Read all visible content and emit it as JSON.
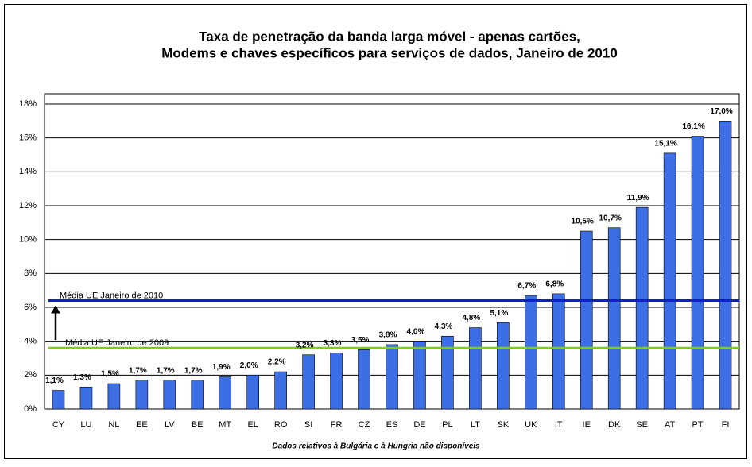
{
  "chart_data": {
    "type": "bar",
    "title": [
      "Taxa de penetração da banda larga móvel - apenas cartões,",
      "Modems e chaves específicos para serviços de dados,  Janeiro de 2010"
    ],
    "categories": [
      "CY",
      "LU",
      "NL",
      "EE",
      "LV",
      "BE",
      "MT",
      "EL",
      "RO",
      "SI",
      "FR",
      "CZ",
      "ES",
      "DE",
      "PL",
      "LT",
      "SK",
      "UK",
      "IT",
      "IE",
      "DK",
      "SE",
      "AT",
      "PT",
      "FI"
    ],
    "values": [
      1.1,
      1.3,
      1.5,
      1.7,
      1.7,
      1.7,
      1.9,
      2.0,
      2.2,
      3.2,
      3.3,
      3.5,
      3.8,
      4.0,
      4.3,
      4.8,
      5.1,
      6.7,
      6.8,
      10.5,
      10.7,
      11.9,
      15.1,
      16.1,
      17.0
    ],
    "value_labels": [
      "1,1%",
      "1,3%",
      "1,5%",
      "1,7%",
      "1,7%",
      "1,7%",
      "1,9%",
      "2,0%",
      "2,2%",
      "3,2%",
      "3,3%",
      "3,5%",
      "3,8%",
      "4,0%",
      "4,3%",
      "4,8%",
      "5,1%",
      "6,7%",
      "6,8%",
      "10,5%",
      "10,7%",
      "11,9%",
      "15,1%",
      "16,1%",
      "17,0%"
    ],
    "color": "#3c6fe6",
    "ylim": [
      0,
      18
    ],
    "yticks": [
      {
        "value": 0,
        "label": "0%"
      },
      {
        "value": 2,
        "label": "2%"
      },
      {
        "value": 4,
        "label": "4%"
      },
      {
        "value": 6,
        "label": "6%"
      },
      {
        "value": 8,
        "label": "8%"
      },
      {
        "value": 10,
        "label": "10%"
      },
      {
        "value": 12,
        "label": "12%"
      },
      {
        "value": 14,
        "label": "14%"
      },
      {
        "value": 16,
        "label": "16%"
      },
      {
        "value": 18,
        "label": "18%"
      }
    ],
    "grid": true,
    "reference_lines": [
      {
        "name": "Média UE Janeiro de 2010",
        "value": 6.4,
        "color": "#1020c8"
      },
      {
        "name": "Média UE Janeiro de 2009",
        "value": 3.6,
        "color": "#7ccc1c"
      }
    ],
    "note": "Dados relativos à Bulgária e à Hungria não disponíveis"
  }
}
